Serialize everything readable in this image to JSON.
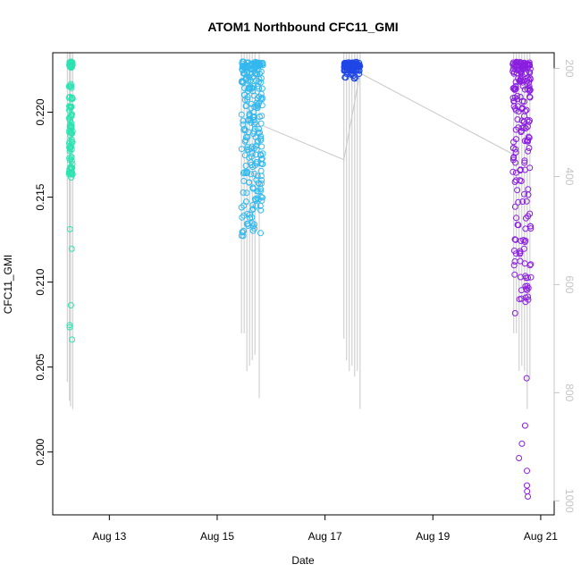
{
  "chart_data": {
    "type": "scatter",
    "title": "ATOM1 Northbound CFC11_GMI",
    "xlabel": "Date",
    "ylabel": "CFC11_GMI",
    "x_ticks": [
      "Aug 13",
      "Aug 15",
      "Aug 17",
      "Aug 19",
      "Aug 21"
    ],
    "x_tick_values": [
      13,
      15,
      17,
      19,
      21
    ],
    "xlim": [
      11.95,
      21.25
    ],
    "y_ticks": [
      "0.200",
      "0.205",
      "0.210",
      "0.215",
      "0.220"
    ],
    "y_tick_values": [
      0.2,
      0.205,
      0.21,
      0.215,
      0.22
    ],
    "ylim": [
      0.1963,
      0.2235
    ],
    "right_axis": {
      "ticks": [
        "200",
        "400",
        "600",
        "800",
        "1000"
      ],
      "tick_values": [
        200,
        400,
        600,
        800,
        1000
      ],
      "lim": [
        171,
        1026
      ],
      "color": "#c4c4c4"
    },
    "pressure_profiles": [
      {
        "x": [
          12.22,
          12.26,
          12.28,
          12.32
        ],
        "bottom": [
          780,
          815,
          825,
          830
        ]
      },
      {
        "x": [
          15.45,
          15.5,
          15.55,
          15.6,
          15.65,
          15.7,
          15.78
        ],
        "bottom": [
          690,
          690,
          760,
          750,
          740,
          730,
          810
        ]
      },
      {
        "x": [
          17.35,
          17.4,
          17.45,
          17.5,
          17.55,
          17.6,
          17.65
        ],
        "bottom": [
          700,
          740,
          760,
          750,
          770,
          760,
          830
        ]
      },
      {
        "x": [
          20.5,
          20.55,
          20.6,
          20.65,
          20.7,
          20.75,
          20.8
        ],
        "bottom": [
          690,
          690,
          760,
          750,
          760,
          830,
          770
        ]
      }
    ],
    "trajectory_line": [
      [
        15.85,
        0.2192
      ],
      [
        17.35,
        0.2172
      ],
      [
        17.65,
        0.2223
      ],
      [
        20.5,
        0.2175
      ]
    ],
    "series": [
      {
        "color": "#2de3b0",
        "x_range": [
          12.25,
          12.32
        ],
        "points": [
          [
            0.2228,
            36
          ],
          [
            0.2215,
            6
          ],
          [
            0.2208,
            6
          ],
          [
            0.2202,
            8
          ],
          [
            0.2197,
            8
          ],
          [
            0.2192,
            8
          ],
          [
            0.2188,
            8
          ],
          [
            0.2183,
            6
          ],
          [
            0.2178,
            8
          ],
          [
            0.2173,
            6
          ],
          [
            0.2168,
            6
          ],
          [
            0.2165,
            8
          ],
          [
            0.2163,
            6
          ],
          [
            0.213,
            1
          ],
          [
            0.2118,
            1
          ],
          [
            0.2085,
            1
          ],
          [
            0.2076,
            1
          ],
          [
            0.2072,
            1
          ],
          [
            0.2067,
            1
          ]
        ]
      },
      {
        "color": "#33b8ee",
        "x_range": [
          15.45,
          15.85
        ],
        "points": [
          [
            0.2228,
            44
          ],
          [
            0.2224,
            18
          ],
          [
            0.2219,
            16
          ],
          [
            0.2214,
            14
          ],
          [
            0.2209,
            12
          ],
          [
            0.2204,
            12
          ],
          [
            0.2199,
            10
          ],
          [
            0.2194,
            10
          ],
          [
            0.2189,
            10
          ],
          [
            0.2184,
            10
          ],
          [
            0.2179,
            10
          ],
          [
            0.2174,
            10
          ],
          [
            0.2169,
            10
          ],
          [
            0.2164,
            10
          ],
          [
            0.2159,
            8
          ],
          [
            0.2154,
            8
          ],
          [
            0.2149,
            8
          ],
          [
            0.2144,
            8
          ],
          [
            0.2139,
            6
          ],
          [
            0.2134,
            6
          ],
          [
            0.213,
            4
          ],
          [
            0.2128,
            4
          ]
        ]
      },
      {
        "color": "#1f47e6",
        "x_range": [
          17.35,
          17.65
        ],
        "points": [
          [
            0.2228,
            60
          ],
          [
            0.2226,
            30
          ],
          [
            0.2224,
            8
          ],
          [
            0.2222,
            6
          ],
          [
            0.222,
            4
          ]
        ]
      },
      {
        "color": "#8a1ee0",
        "x_range": [
          20.48,
          20.82
        ],
        "points": [
          [
            0.2228,
            40
          ],
          [
            0.2224,
            20
          ],
          [
            0.2219,
            16
          ],
          [
            0.2214,
            14
          ],
          [
            0.2208,
            12
          ],
          [
            0.2202,
            10
          ],
          [
            0.2196,
            8
          ],
          [
            0.219,
            8
          ],
          [
            0.2184,
            8
          ],
          [
            0.2178,
            6
          ],
          [
            0.2172,
            6
          ],
          [
            0.2166,
            6
          ],
          [
            0.216,
            4
          ],
          [
            0.2153,
            4
          ],
          [
            0.2146,
            4
          ],
          [
            0.2139,
            4
          ],
          [
            0.2132,
            6
          ],
          [
            0.2125,
            6
          ],
          [
            0.2118,
            6
          ],
          [
            0.2111,
            6
          ],
          [
            0.2104,
            6
          ],
          [
            0.2097,
            6
          ],
          [
            0.209,
            6
          ],
          [
            0.2081,
            1
          ],
          [
            0.2043,
            1
          ],
          [
            0.2015,
            1
          ],
          [
            0.2005,
            1
          ],
          [
            0.1995,
            1
          ],
          [
            0.1988,
            1
          ],
          [
            0.1981,
            1
          ],
          [
            0.1976,
            1
          ],
          [
            0.1974,
            1
          ]
        ]
      }
    ],
    "colors": {
      "profile_line": "#c8c8c8",
      "axis": "#000000"
    }
  }
}
